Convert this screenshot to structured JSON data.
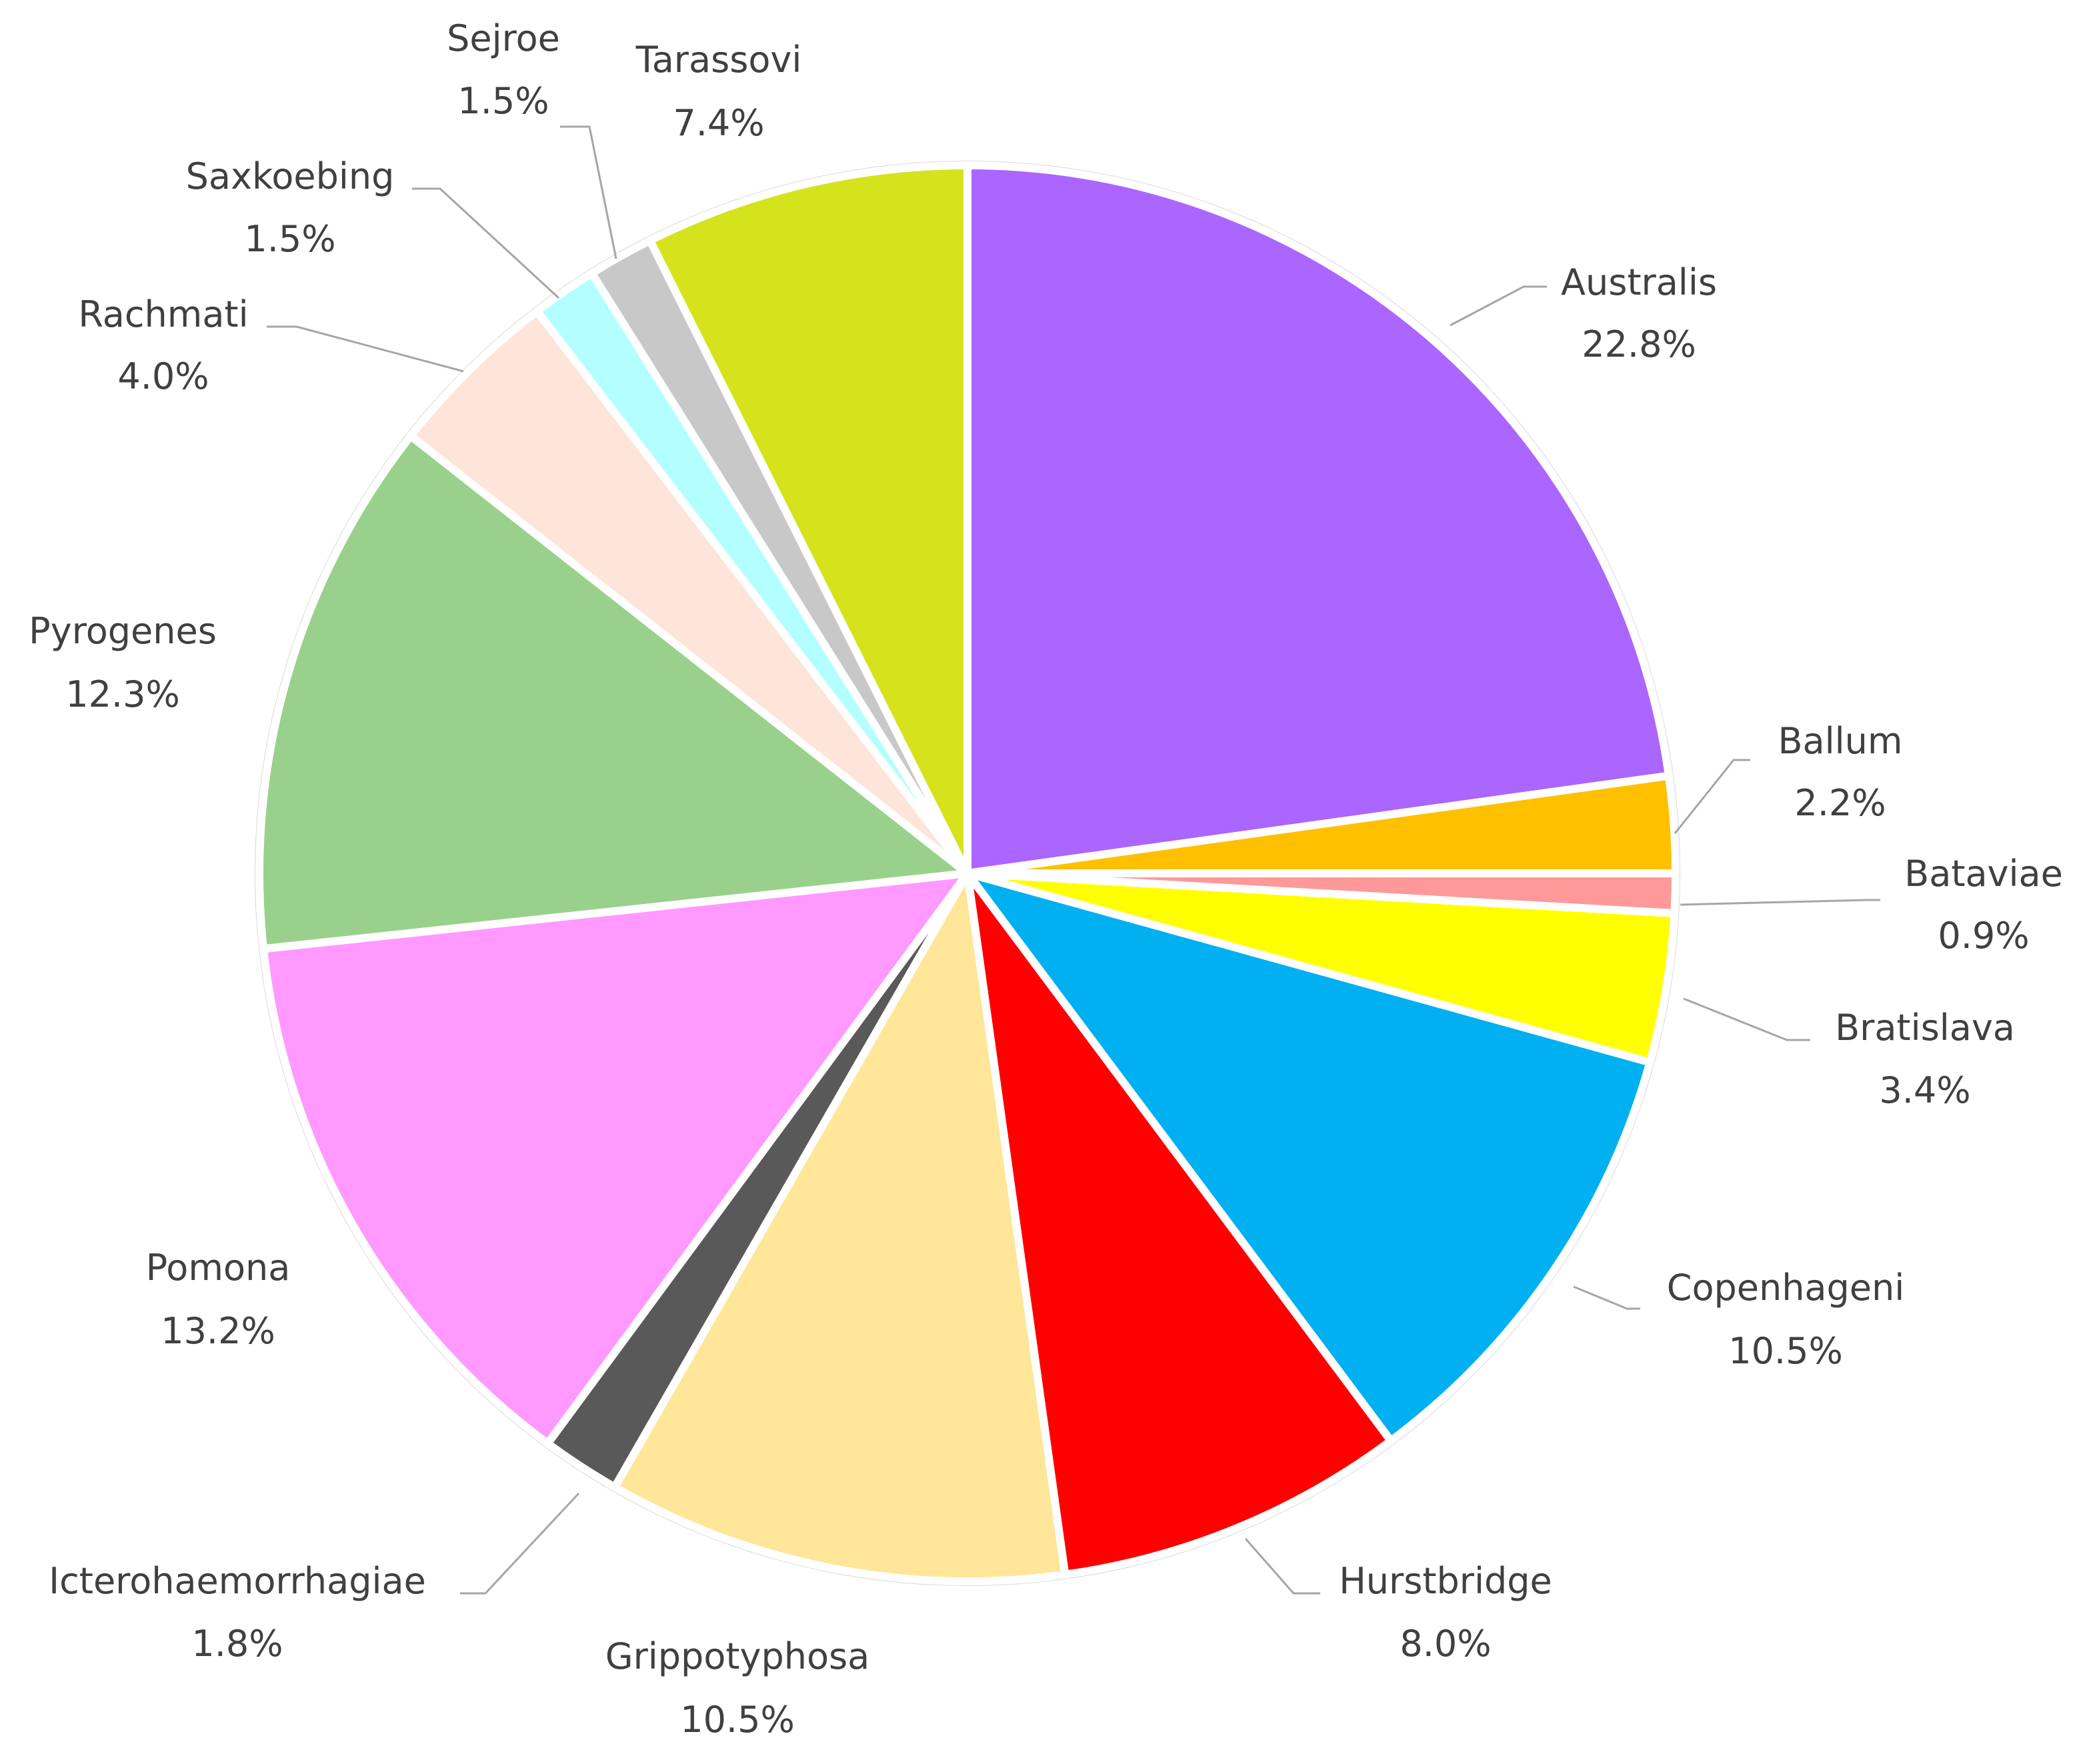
{
  "chart_data": {
    "type": "pie",
    "title": "",
    "start_angle_deg": 0,
    "direction": "clockwise",
    "slices": [
      {
        "label": "Australis",
        "value": 22.8,
        "display": "22.8%",
        "color": "#aa66ff"
      },
      {
        "label": "Ballum",
        "value": 2.2,
        "display": "2.2%",
        "color": "#ffc000"
      },
      {
        "label": "Bataviae",
        "value": 0.9,
        "display": "0.9%",
        "color": "#ff9999"
      },
      {
        "label": "Bratislava",
        "value": 3.4,
        "display": "3.4%",
        "color": "#ffff00"
      },
      {
        "label": "Copenhageni",
        "value": 10.5,
        "display": "10.5%",
        "color": "#00b0f0"
      },
      {
        "label": "Hurstbridge",
        "value": 8.0,
        "display": "8.0%",
        "color": "#ff0000"
      },
      {
        "label": "Grippotyphosa",
        "value": 10.5,
        "display": "10.5%",
        "color": "#ffe699"
      },
      {
        "label": "Icterohaemorrhagiae",
        "value": 1.8,
        "display": "1.8%",
        "color": "#595959"
      },
      {
        "label": "Pomona",
        "value": 13.2,
        "display": "13.2%",
        "color": "#ff99ff"
      },
      {
        "label": "Pyrogenes",
        "value": 12.3,
        "display": "12.3%",
        "color": "#99d18c"
      },
      {
        "label": "Rachmati",
        "value": 4.0,
        "display": "4.0%",
        "color": "#ffe4d9"
      },
      {
        "label": "Saxkoebing",
        "value": 1.5,
        "display": "1.5%",
        "color": "#b3ffff"
      },
      {
        "label": "Sejroe",
        "value": 1.5,
        "display": "1.5%",
        "color": "#c8c8c8"
      },
      {
        "label": "Tarassovi",
        "value": 7.4,
        "display": "7.4%",
        "color": "#d4e31c"
      }
    ]
  }
}
